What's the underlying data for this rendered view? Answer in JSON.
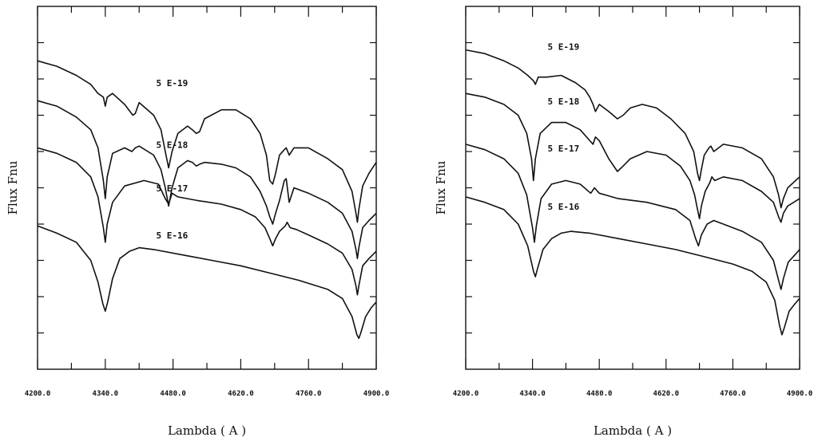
{
  "chart_data": [
    {
      "type": "line",
      "xlabel": "Lambda ( A )",
      "ylabel": "Flux Fnu",
      "xlim": [
        4200,
        4900
      ],
      "ylim": [
        0,
        10
      ],
      "x_ticks": [
        "4200.0",
        "4340.0",
        "4480.0",
        "4620.0",
        "4760.0",
        "4900.0"
      ],
      "grid": false,
      "series": [
        {
          "name": "5 E-19",
          "label_pos": [
            4478,
            7.8
          ],
          "x": [
            4200,
            4240,
            4280,
            4310,
            4325,
            4336,
            4340,
            4344,
            4355,
            4380,
            4397,
            4402,
            4410,
            4440,
            4455,
            4464,
            4471,
            4478,
            4490,
            4510,
            4520,
            4528,
            4535,
            4545,
            4580,
            4610,
            4640,
            4660,
            4673,
            4680,
            4686,
            4692,
            4700,
            4710,
            4714,
            4720,
            4730,
            4760,
            4800,
            4830,
            4850,
            4858,
            4861,
            4864,
            4872,
            4885,
            4900
          ],
          "y": [
            8.5,
            8.35,
            8.1,
            7.85,
            7.6,
            7.5,
            7.25,
            7.5,
            7.6,
            7.3,
            7.0,
            7.05,
            7.35,
            7.0,
            6.6,
            6.0,
            5.55,
            6.0,
            6.5,
            6.7,
            6.6,
            6.5,
            6.55,
            6.9,
            7.15,
            7.15,
            6.9,
            6.5,
            5.9,
            5.2,
            5.1,
            5.4,
            5.9,
            6.05,
            6.1,
            5.9,
            6.1,
            6.1,
            5.8,
            5.5,
            4.9,
            4.3,
            4.05,
            4.4,
            5.05,
            5.4,
            5.7
          ]
        },
        {
          "name": "5 E-18",
          "label_pos": [
            4478,
            6.1
          ],
          "x": [
            4200,
            4240,
            4280,
            4310,
            4325,
            4336,
            4340,
            4344,
            4355,
            4380,
            4395,
            4402,
            4410,
            4440,
            4455,
            4464,
            4471,
            4478,
            4490,
            4510,
            4520,
            4528,
            4535,
            4545,
            4580,
            4610,
            4640,
            4660,
            4673,
            4680,
            4686,
            4692,
            4700,
            4710,
            4714,
            4720,
            4730,
            4760,
            4800,
            4830,
            4850,
            4858,
            4861,
            4864,
            4872,
            4885,
            4900
          ],
          "y": [
            7.4,
            7.25,
            6.95,
            6.6,
            6.1,
            5.2,
            4.7,
            5.3,
            5.95,
            6.1,
            6.0,
            6.1,
            6.15,
            5.9,
            5.5,
            5.0,
            4.5,
            5.0,
            5.55,
            5.75,
            5.7,
            5.6,
            5.65,
            5.7,
            5.65,
            5.55,
            5.3,
            4.9,
            4.5,
            4.2,
            4.0,
            4.3,
            4.65,
            5.2,
            5.25,
            4.6,
            5.0,
            4.85,
            4.6,
            4.3,
            3.8,
            3.3,
            3.05,
            3.35,
            3.9,
            4.1,
            4.3
          ]
        },
        {
          "name": "5 E-17",
          "label_pos": [
            4478,
            4.9
          ],
          "x": [
            4200,
            4240,
            4280,
            4310,
            4325,
            4336,
            4340,
            4344,
            4355,
            4380,
            4420,
            4450,
            4464,
            4471,
            4478,
            4490,
            4530,
            4580,
            4620,
            4650,
            4670,
            4680,
            4686,
            4692,
            4700,
            4712,
            4716,
            4722,
            4735,
            4760,
            4800,
            4830,
            4850,
            4858,
            4861,
            4864,
            4872,
            4885,
            4900
          ],
          "y": [
            6.1,
            5.95,
            5.7,
            5.3,
            4.75,
            3.9,
            3.5,
            4.0,
            4.6,
            5.05,
            5.2,
            5.1,
            4.7,
            4.55,
            4.85,
            4.75,
            4.65,
            4.55,
            4.4,
            4.2,
            3.9,
            3.6,
            3.4,
            3.6,
            3.8,
            3.95,
            4.05,
            3.9,
            3.85,
            3.7,
            3.45,
            3.2,
            2.75,
            2.3,
            2.05,
            2.3,
            2.85,
            3.05,
            3.25
          ]
        },
        {
          "name": "5 E-16",
          "label_pos": [
            4478,
            3.6
          ],
          "x": [
            4200,
            4240,
            4280,
            4310,
            4325,
            4335,
            4340,
            4345,
            4355,
            4370,
            4390,
            4410,
            4440,
            4500,
            4560,
            4620,
            4680,
            4740,
            4800,
            4830,
            4850,
            4860,
            4864,
            4868,
            4878,
            4890,
            4900
          ],
          "y": [
            3.95,
            3.75,
            3.5,
            3.0,
            2.4,
            1.8,
            1.6,
            1.85,
            2.5,
            3.05,
            3.25,
            3.35,
            3.3,
            3.15,
            3.0,
            2.85,
            2.65,
            2.45,
            2.2,
            1.95,
            1.45,
            0.95,
            0.85,
            1.0,
            1.45,
            1.7,
            1.85
          ]
        }
      ]
    },
    {
      "type": "line",
      "xlabel": "Lambda ( A )",
      "ylabel": "Flux Fnu",
      "xlim": [
        4200,
        4900
      ],
      "ylim": [
        0,
        10
      ],
      "x_ticks": [
        "4200.0",
        "4340.0",
        "4480.0",
        "4620.0",
        "4760.0",
        "4900.0"
      ],
      "grid": false,
      "series": [
        {
          "name": "5 E-19",
          "label_pos": [
            4405,
            8.8
          ],
          "x": [
            4200,
            4240,
            4280,
            4310,
            4330,
            4342,
            4346,
            4352,
            4370,
            4400,
            4430,
            4450,
            4460,
            4467,
            4472,
            4480,
            4500,
            4518,
            4530,
            4545,
            4570,
            4600,
            4630,
            4660,
            4678,
            4686,
            4690,
            4694,
            4700,
            4710,
            4714,
            4720,
            4740,
            4780,
            4820,
            4845,
            4856,
            4861,
            4866,
            4875,
            4900
          ],
          "y": [
            8.8,
            8.7,
            8.5,
            8.3,
            8.1,
            7.95,
            7.85,
            8.05,
            8.05,
            8.1,
            7.9,
            7.7,
            7.5,
            7.3,
            7.1,
            7.3,
            7.1,
            6.9,
            7.0,
            7.2,
            7.3,
            7.2,
            6.9,
            6.5,
            6.0,
            5.4,
            5.2,
            5.5,
            5.9,
            6.1,
            6.15,
            6.0,
            6.2,
            6.1,
            5.8,
            5.3,
            4.8,
            4.45,
            4.7,
            5.0,
            5.3
          ]
        },
        {
          "name": "5 E-18",
          "label_pos": [
            4405,
            7.3
          ],
          "x": [
            4200,
            4240,
            4280,
            4310,
            4328,
            4338,
            4342,
            4346,
            4356,
            4380,
            4410,
            4440,
            4460,
            4467,
            4472,
            4480,
            4500,
            4518,
            4530,
            4545,
            4580,
            4620,
            4650,
            4670,
            4680,
            4686,
            4690,
            4694,
            4702,
            4712,
            4716,
            4722,
            4740,
            4780,
            4820,
            4845,
            4856,
            4861,
            4866,
            4875,
            4900
          ],
          "y": [
            7.6,
            7.5,
            7.3,
            7.0,
            6.5,
            5.8,
            5.2,
            5.8,
            6.5,
            6.8,
            6.8,
            6.6,
            6.3,
            6.2,
            6.4,
            6.3,
            5.8,
            5.45,
            5.6,
            5.8,
            6.0,
            5.9,
            5.6,
            5.2,
            4.8,
            4.4,
            4.15,
            4.5,
            4.9,
            5.15,
            5.3,
            5.2,
            5.3,
            5.2,
            4.9,
            4.6,
            4.2,
            4.05,
            4.3,
            4.5,
            4.7
          ]
        },
        {
          "name": "5 E-17",
          "label_pos": [
            4405,
            6.0
          ],
          "x": [
            4200,
            4240,
            4280,
            4310,
            4328,
            4340,
            4344,
            4348,
            4358,
            4380,
            4410,
            4440,
            4462,
            4470,
            4480,
            4520,
            4580,
            4640,
            4670,
            4682,
            4688,
            4694,
            4706,
            4720,
            4740,
            4780,
            4820,
            4845,
            4855,
            4861,
            4866,
            4876,
            4890,
            4900
          ],
          "y": [
            6.2,
            6.05,
            5.8,
            5.4,
            4.8,
            3.9,
            3.5,
            3.95,
            4.7,
            5.1,
            5.2,
            5.1,
            4.85,
            5.0,
            4.85,
            4.7,
            4.6,
            4.4,
            4.1,
            3.6,
            3.4,
            3.7,
            4.0,
            4.1,
            4.0,
            3.8,
            3.5,
            3.0,
            2.5,
            2.2,
            2.5,
            2.95,
            3.15,
            3.3
          ]
        },
        {
          "name": "5 E-16",
          "label_pos": [
            4405,
            4.4
          ],
          "x": [
            4200,
            4240,
            4280,
            4310,
            4330,
            4342,
            4346,
            4350,
            4362,
            4380,
            4400,
            4420,
            4460,
            4520,
            4580,
            4640,
            4700,
            4760,
            4800,
            4830,
            4848,
            4858,
            4863,
            4868,
            4878,
            4890,
            4900
          ],
          "y": [
            4.75,
            4.6,
            4.4,
            4.0,
            3.4,
            2.7,
            2.55,
            2.75,
            3.3,
            3.6,
            3.75,
            3.8,
            3.75,
            3.6,
            3.45,
            3.3,
            3.1,
            2.9,
            2.7,
            2.4,
            1.9,
            1.2,
            0.95,
            1.15,
            1.6,
            1.8,
            1.95
          ]
        }
      ]
    }
  ]
}
